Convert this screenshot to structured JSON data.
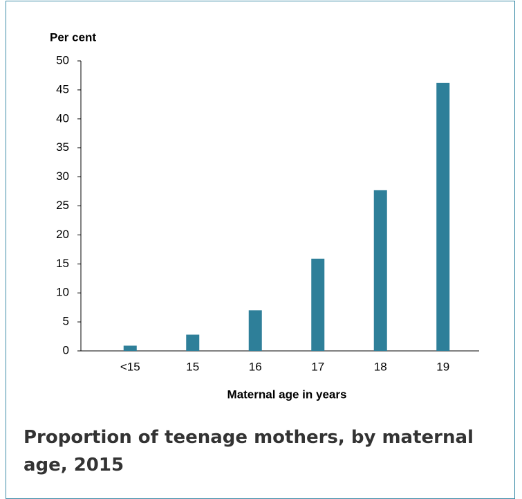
{
  "chart_data": {
    "type": "bar",
    "title": "Proportion of teenage mothers, by maternal age, 2015",
    "y_label": "Per cent",
    "x_label": "Maternal age in years",
    "categories": [
      "<15",
      "15",
      "16",
      "17",
      "18",
      "19"
    ],
    "values": [
      0.9,
      2.8,
      7.0,
      15.9,
      27.7,
      46.2
    ],
    "color": "#2e7f99",
    "ylim": [
      0,
      50
    ],
    "yticks": [
      0,
      5,
      10,
      15,
      20,
      25,
      30,
      35,
      40,
      45,
      50
    ],
    "grid": false
  }
}
